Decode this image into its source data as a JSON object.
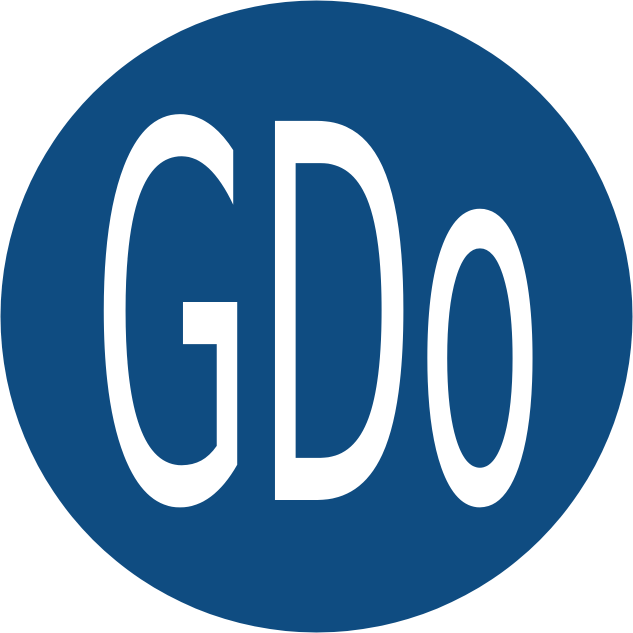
{
  "logo": {
    "text": "GDo"
  }
}
